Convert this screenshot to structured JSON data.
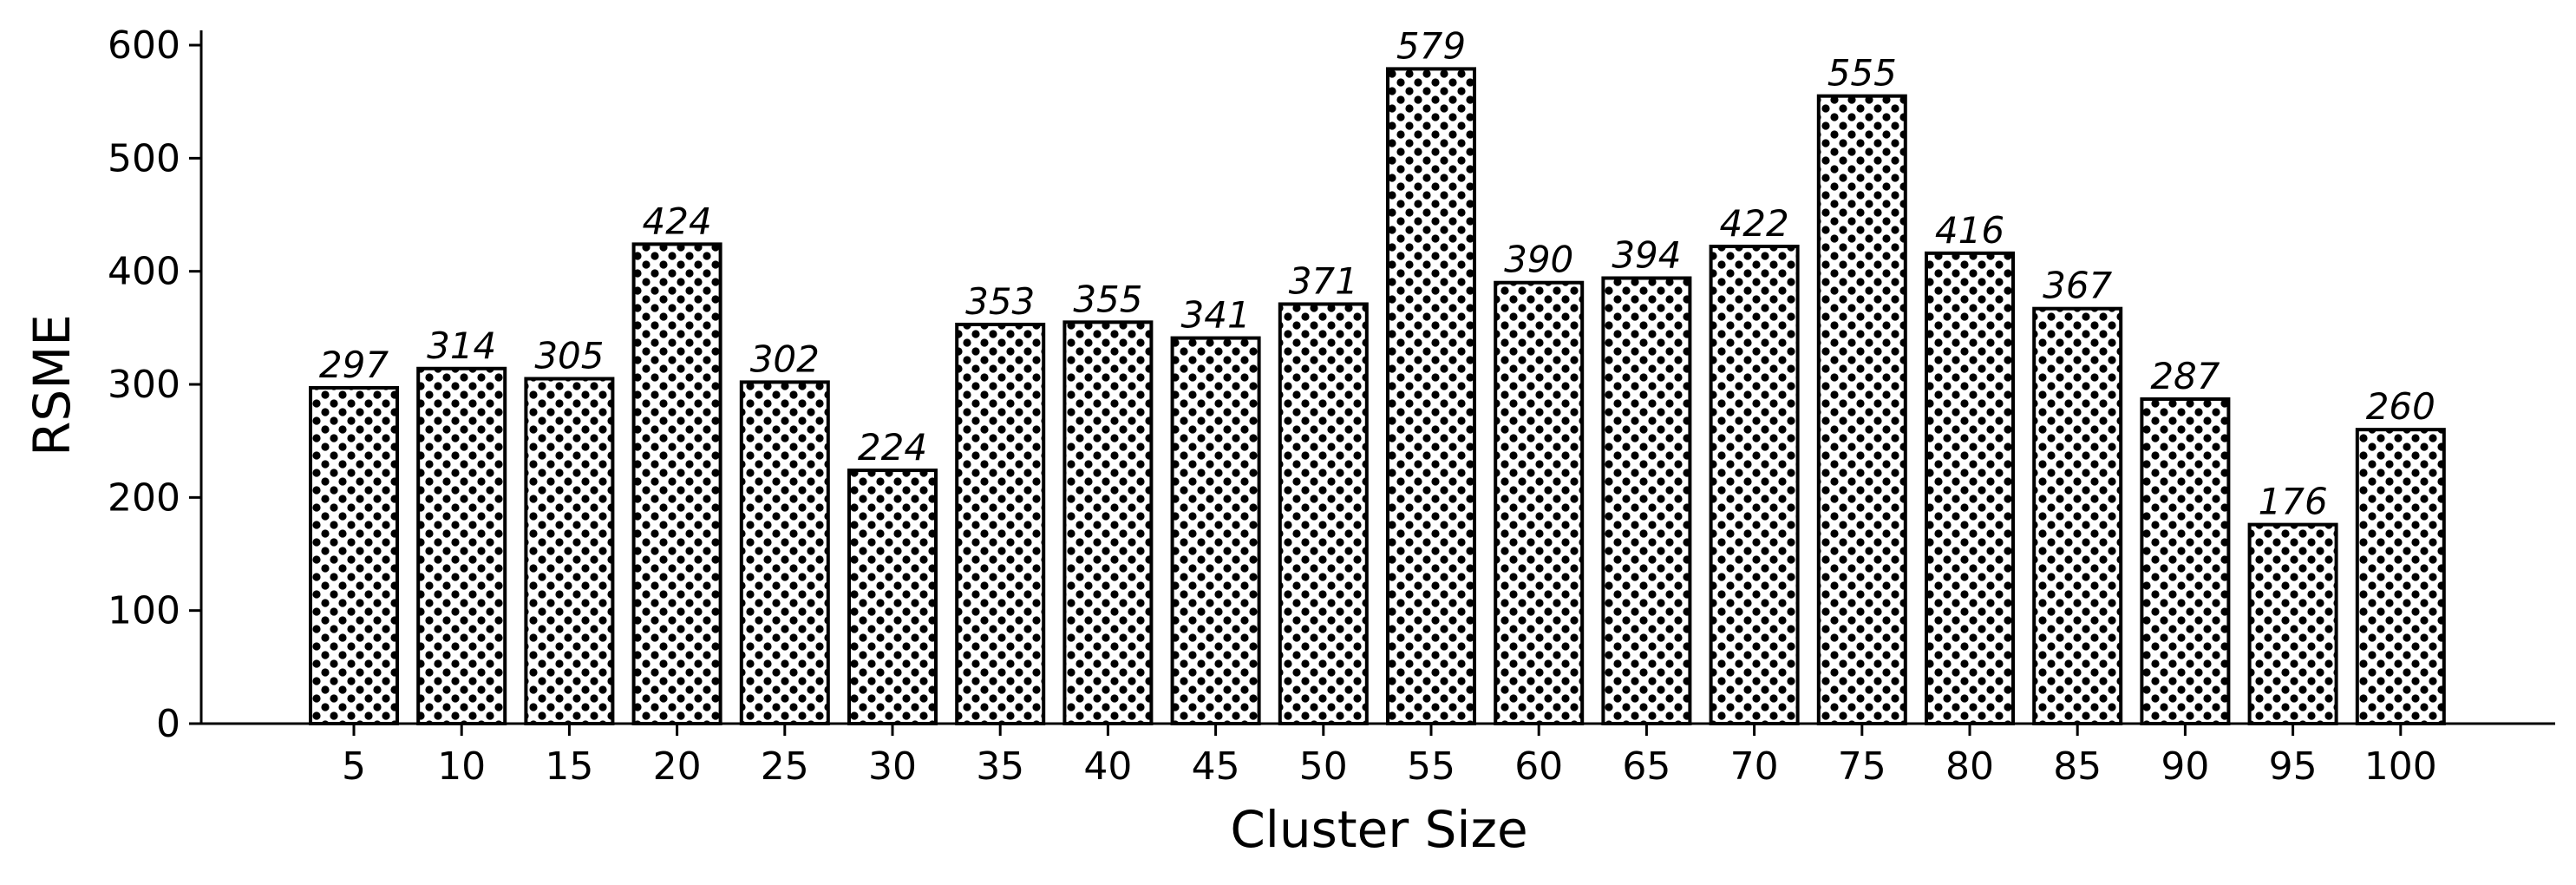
{
  "chart_data": {
    "type": "bar",
    "title": "",
    "xlabel": "Cluster Size",
    "ylabel": "RSME",
    "categories": [
      "5",
      "10",
      "15",
      "20",
      "25",
      "30",
      "35",
      "40",
      "45",
      "50",
      "55",
      "60",
      "65",
      "70",
      "75",
      "80",
      "85",
      "90",
      "95",
      "100"
    ],
    "values": [
      297,
      314,
      305,
      424,
      302,
      224,
      353,
      355,
      341,
      371,
      579,
      390,
      394,
      422,
      555,
      416,
      367,
      287,
      176,
      260
    ],
    "ylim": [
      0,
      610
    ],
    "yticks": [
      0,
      100,
      200,
      300,
      400,
      500,
      600
    ],
    "grid": false,
    "legend": "none",
    "bar_fill": "dotted-hatch",
    "colors": {
      "bar_face": "#ffffff",
      "bar_edge": "#000000",
      "dots": "#000000",
      "axis": "#000000"
    }
  }
}
